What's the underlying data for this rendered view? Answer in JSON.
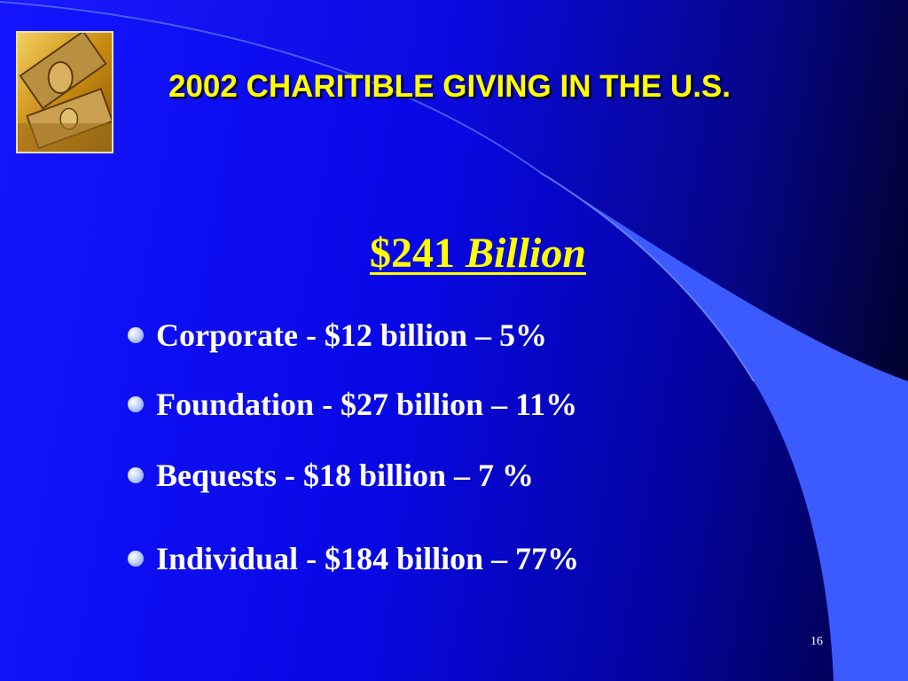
{
  "slide": {
    "title": "2002 CHARITIBLE GIVING IN THE U.S.",
    "total": {
      "amount": "$241",
      "unit": "Billion"
    },
    "bullets": [
      {
        "label": "Corporate - $12 billion – 5%"
      },
      {
        "label": "Foundation - $27 billion – 11%"
      },
      {
        "label": "Bequests - $18 billion – 7 %"
      },
      {
        "label": "Individual - $184 billion – 77%"
      }
    ],
    "page_number": "16",
    "logo_icon": "money-bills-icon",
    "bullet_icon": "circle-bullet-icon"
  },
  "colors": {
    "background": "#0a0ae0",
    "accent_swoosh": "#3355ff",
    "title": "#ffff00",
    "body_text": "#ffffff"
  }
}
